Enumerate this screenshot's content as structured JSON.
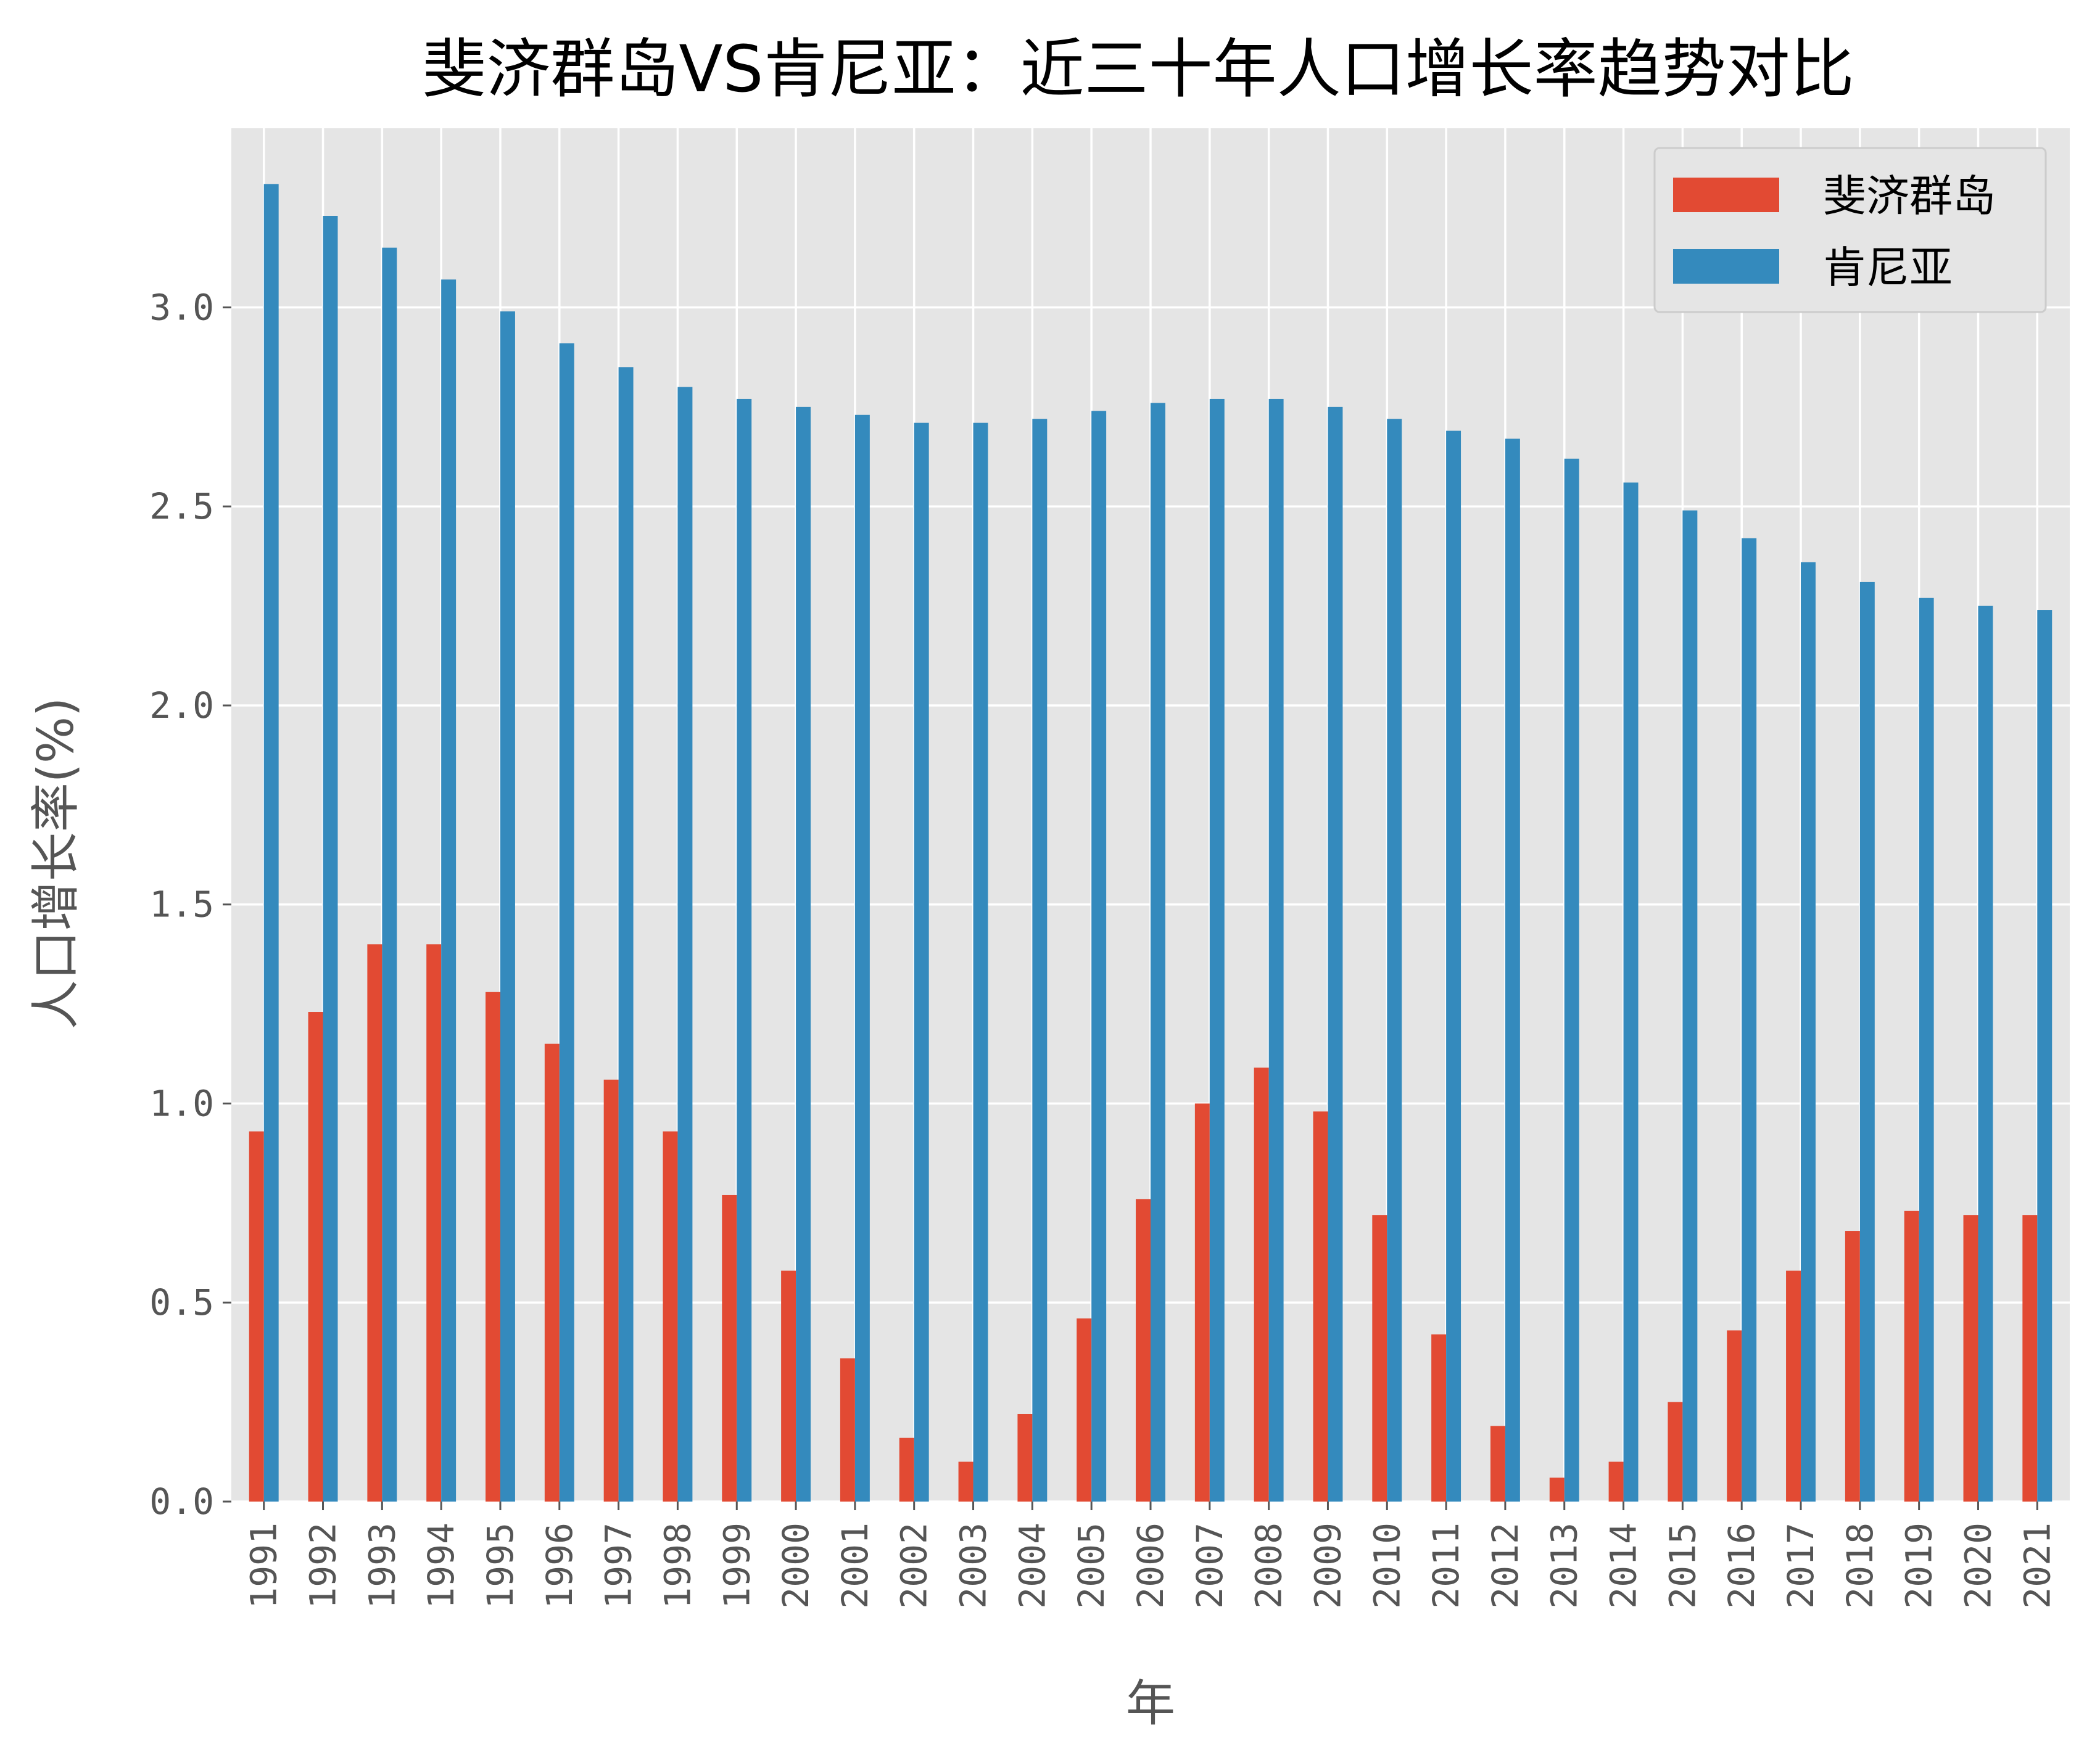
{
  "colors": {
    "fiji": "#E24A33",
    "kenya": "#348ABD",
    "plot_bg": "#E5E5E5",
    "grid": "#FFFFFF",
    "text": "#555555"
  },
  "chart_data": {
    "type": "bar",
    "title": "斐济群岛VS肯尼亚：近三十年人口增长率趋势对比",
    "xlabel": "年",
    "ylabel": "人口增长率(%)",
    "ylim": [
      0,
      3.45
    ],
    "yticks": [
      "0.0",
      "0.5",
      "1.0",
      "1.5",
      "2.0",
      "2.5",
      "3.0"
    ],
    "grid": true,
    "legend_position": "top-right",
    "categories": [
      "1991",
      "1992",
      "1993",
      "1994",
      "1995",
      "1996",
      "1997",
      "1998",
      "1999",
      "2000",
      "2001",
      "2002",
      "2003",
      "2004",
      "2005",
      "2006",
      "2007",
      "2008",
      "2009",
      "2010",
      "2011",
      "2012",
      "2013",
      "2014",
      "2015",
      "2016",
      "2017",
      "2018",
      "2019",
      "2020",
      "2021"
    ],
    "series": [
      {
        "name": "斐济群岛",
        "values": [
          0.93,
          1.23,
          1.4,
          1.4,
          1.28,
          1.15,
          1.06,
          0.93,
          0.77,
          0.58,
          0.36,
          0.16,
          0.1,
          0.22,
          0.46,
          0.76,
          1.0,
          1.09,
          0.98,
          0.72,
          0.42,
          0.19,
          0.06,
          0.1,
          0.25,
          0.43,
          0.58,
          0.68,
          0.73,
          0.72,
          0.72
        ]
      },
      {
        "name": "肯尼亚",
        "values": [
          3.31,
          3.23,
          3.15,
          3.07,
          2.99,
          2.91,
          2.85,
          2.8,
          2.77,
          2.75,
          2.73,
          2.71,
          2.71,
          2.72,
          2.74,
          2.76,
          2.77,
          2.77,
          2.75,
          2.72,
          2.69,
          2.67,
          2.62,
          2.56,
          2.49,
          2.42,
          2.36,
          2.31,
          2.27,
          2.25,
          2.24
        ]
      }
    ]
  }
}
